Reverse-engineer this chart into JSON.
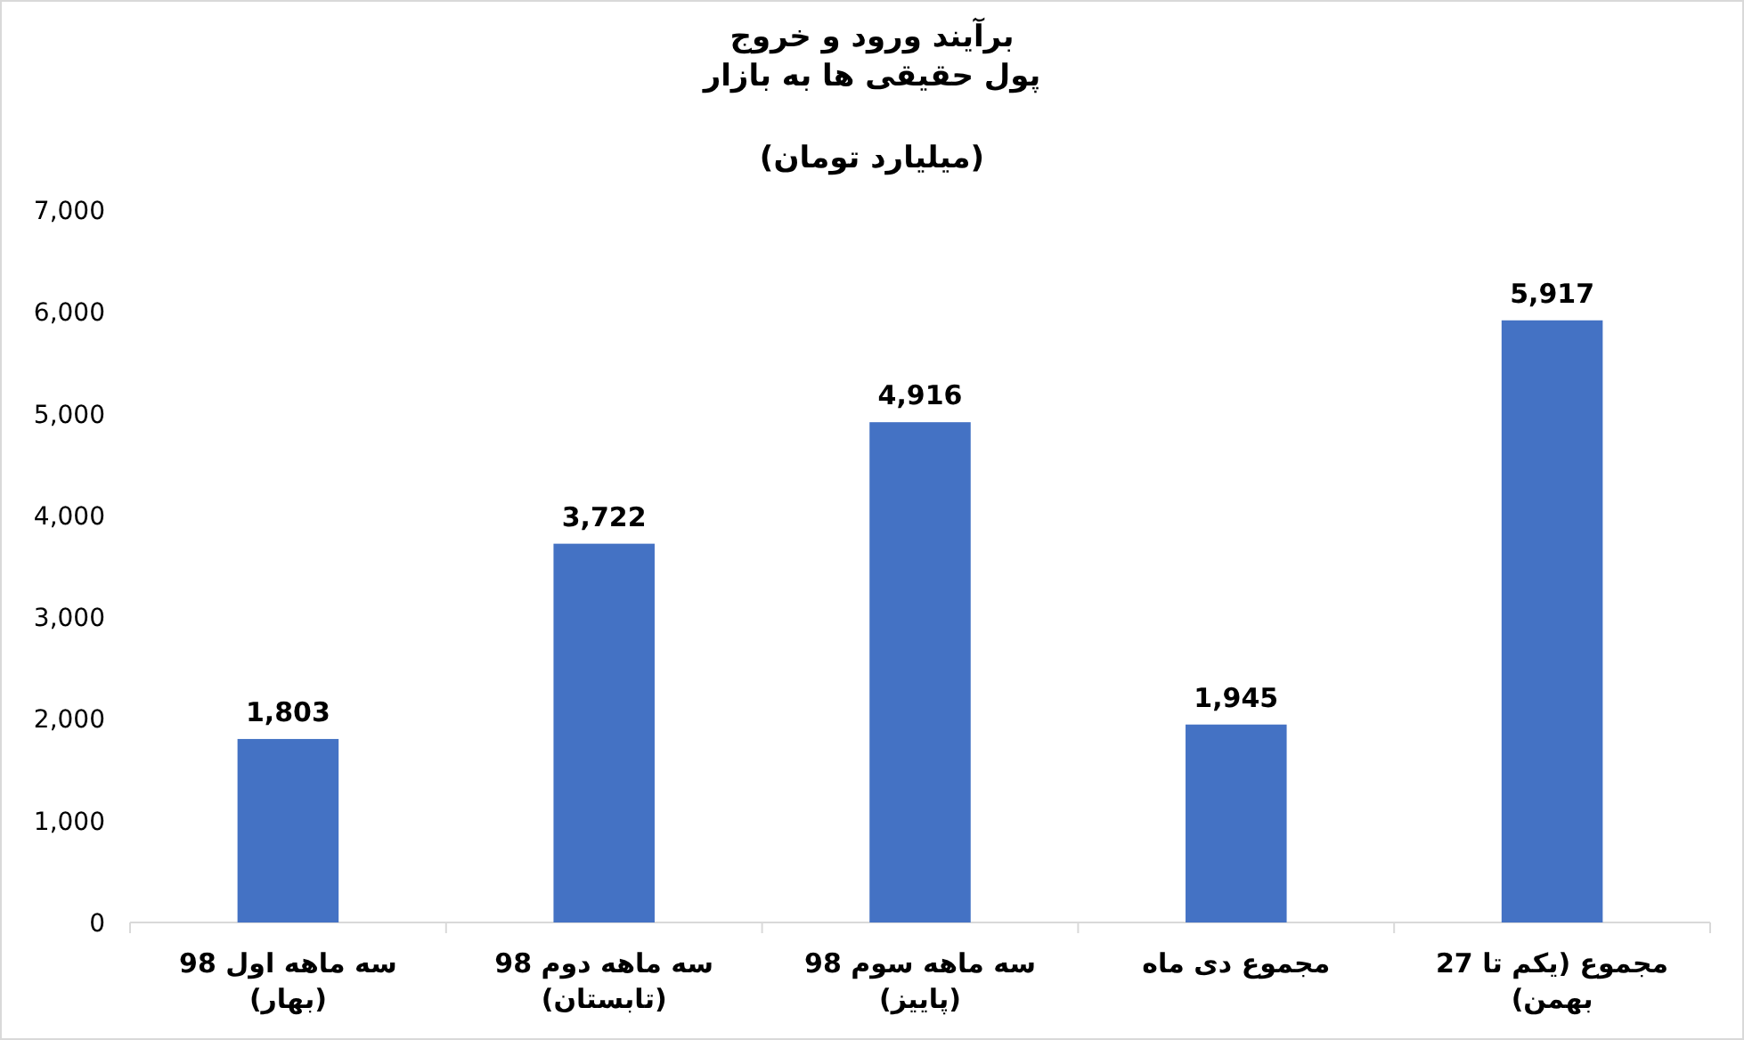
{
  "chart_data": {
    "type": "bar",
    "title": "برآیند ورود و خروج\nپول حقیقی ها به بازار",
    "subtitle": "(میلیارد تومان)",
    "categories": [
      "سه ماهه اول 98\n(بهار)",
      "سه ماهه دوم 98\n(تابستان)",
      "سه ماهه سوم 98\n(پاییز)",
      "مجموع دی ماه",
      "مجموع (یکم تا 27\nبهمن)"
    ],
    "values": [
      1803,
      3722,
      4916,
      1945,
      5917
    ],
    "value_labels": [
      "1,803",
      "3,722",
      "4,916",
      "1,945",
      "5,917"
    ],
    "color": "#4472c4",
    "ylim": [
      0,
      7000
    ],
    "yticks": [
      0,
      {
        "value": 1000,
        "label": "1,000"
      },
      {
        "value": 2000,
        "label": "2,000"
      },
      {
        "value": 3000,
        "label": "3,000"
      },
      {
        "value": 4000,
        "label": "4,000"
      },
      {
        "value": 5000,
        "label": "5,000"
      },
      {
        "value": 6000,
        "label": "6,000"
      },
      {
        "value": 7000,
        "label": "7,000"
      }
    ],
    "grid": false
  }
}
